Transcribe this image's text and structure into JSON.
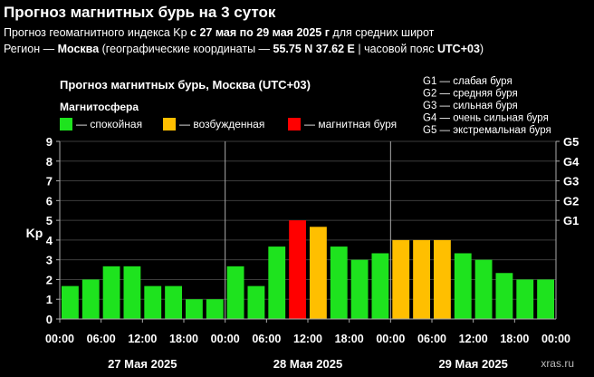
{
  "page": {
    "title": "Прогноз магнитных бурь на 3 суток",
    "line1_pre": "Прогноз геомагнитного индекса Kp ",
    "line1_bold": "с 27 мая по 29 мая 2025 г",
    "line1_post": " для средних широт",
    "line2_a": "Регион — ",
    "line2_b": "Москва",
    "line2_c": " (географические координаты — ",
    "line2_d": "55.75 N 37.62 E",
    "line2_e": " | часовой пояс ",
    "line2_f": "UTC+03",
    "line2_g": ")"
  },
  "chart_data": {
    "type": "bar",
    "title": "Прогноз магнитных бурь, Москва (UTC+03)",
    "legend_title": "Магнитосфера",
    "legend": [
      {
        "label": "— спокойная",
        "color": "#1ee31e"
      },
      {
        "label": "— возбужденная",
        "color": "#ffbf00"
      },
      {
        "label": "— магнитная буря",
        "color": "#ff0000"
      }
    ],
    "storm_levels": [
      "G1 — слабая буря",
      "G2 — средняя буря",
      "G3 — сильная буря",
      "G4 — очень сильная буря",
      "G5 — экстремальная буря"
    ],
    "ylabel": "Kp",
    "ylim": [
      0,
      9
    ],
    "yticks": [
      "0",
      "1",
      "2",
      "3",
      "4",
      "5",
      "6",
      "7",
      "8",
      "9"
    ],
    "right_ticks": [
      {
        "label": "G1",
        "kp": 5
      },
      {
        "label": "G2",
        "kp": 6
      },
      {
        "label": "G3",
        "kp": 7
      },
      {
        "label": "G4",
        "kp": 8
      },
      {
        "label": "G5",
        "kp": 9
      }
    ],
    "days": [
      "27 Мая 2025",
      "28 Мая 2025",
      "29 Мая 2025"
    ],
    "time_labels": [
      "00:00",
      "06:00",
      "12:00",
      "18:00"
    ],
    "end_label": "00:00",
    "values": [
      1.67,
      2.0,
      2.67,
      2.67,
      1.67,
      1.67,
      1.0,
      1.0,
      2.67,
      1.67,
      3.67,
      5.0,
      4.67,
      3.67,
      3.0,
      3.33,
      4.0,
      4.0,
      4.0,
      3.33,
      3.0,
      2.33,
      2.0,
      2.0
    ],
    "level": [
      "q",
      "q",
      "q",
      "q",
      "q",
      "q",
      "q",
      "q",
      "q",
      "q",
      "q",
      "s",
      "e",
      "q",
      "q",
      "q",
      "e",
      "e",
      "e",
      "q",
      "q",
      "q",
      "q",
      "q"
    ],
    "level_colors": {
      "q": "#1ee31e",
      "e": "#ffbf00",
      "s": "#ff0000"
    },
    "watermark": "xras.ru",
    "axis_color": "#aaaaaa",
    "grid_color": "#3c3c3c"
  }
}
